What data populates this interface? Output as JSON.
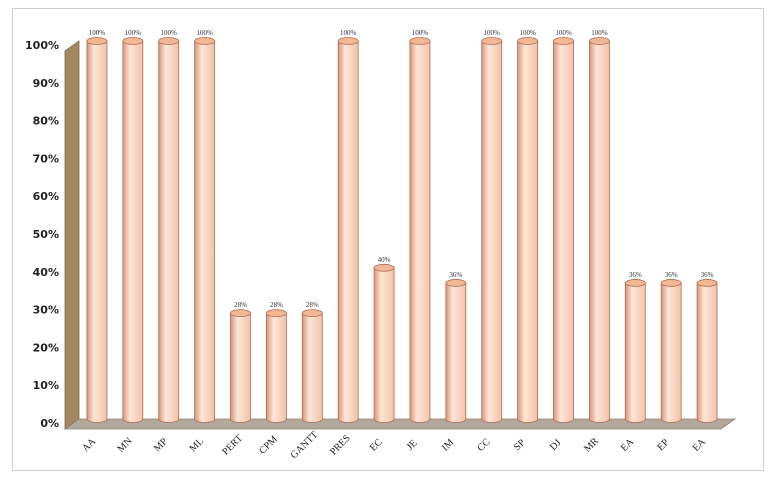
{
  "chart_data": {
    "type": "bar",
    "style": "3d-cylinder",
    "categories": [
      "AA",
      "MN",
      "MP",
      "ML",
      "PERT",
      "CPM",
      "GANTT",
      "PRES",
      "EC",
      "JE",
      "IM",
      "CC",
      "SP",
      "DJ",
      "MR",
      "EA",
      "EP",
      "EA"
    ],
    "values": [
      100,
      100,
      100,
      100,
      28,
      28,
      28,
      100,
      40,
      100,
      36,
      100,
      100,
      100,
      100,
      36,
      36,
      36
    ],
    "data_labels": [
      "100%",
      "100%",
      "100%",
      "100%",
      "28%",
      "28%",
      "28%",
      "100%",
      "40%",
      "100%",
      "36%",
      "100%",
      "100%",
      "100%",
      "100%",
      "36%",
      "36%",
      "36%"
    ],
    "y_ticks": [
      "0%",
      "10%",
      "20%",
      "30%",
      "40%",
      "50%",
      "60%",
      "70%",
      "80%",
      "90%",
      "100%"
    ],
    "ylim": [
      0,
      100
    ],
    "title": "",
    "xlabel": "",
    "ylabel": "",
    "grid": false,
    "legend": "none",
    "colors": {
      "bar_light": "#fde6d8",
      "bar_mid": "#f3c2aa",
      "bar_dark": "#d8957a",
      "bar_edge": "#b06d50",
      "bar_top": "#f2b896",
      "wall": "#a08860",
      "floor": "#b3a89e"
    }
  }
}
